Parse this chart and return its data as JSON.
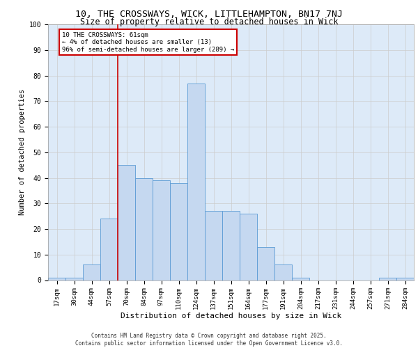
{
  "title1": "10, THE CROSSWAYS, WICK, LITTLEHAMPTON, BN17 7NJ",
  "title2": "Size of property relative to detached houses in Wick",
  "xlabel": "Distribution of detached houses by size in Wick",
  "ylabel": "Number of detached properties",
  "categories": [
    "17sqm",
    "30sqm",
    "44sqm",
    "57sqm",
    "70sqm",
    "84sqm",
    "97sqm",
    "110sqm",
    "124sqm",
    "137sqm",
    "151sqm",
    "164sqm",
    "177sqm",
    "191sqm",
    "204sqm",
    "217sqm",
    "231sqm",
    "244sqm",
    "257sqm",
    "271sqm",
    "284sqm"
  ],
  "values": [
    1,
    1,
    6,
    24,
    45,
    40,
    39,
    38,
    77,
    27,
    27,
    26,
    13,
    6,
    1,
    0,
    0,
    0,
    0,
    1,
    1
  ],
  "bar_color": "#c5d8f0",
  "bar_edge_color": "#5b9bd5",
  "grid_color": "#cccccc",
  "background_color": "#ddeaf8",
  "vline_color": "#cc0000",
  "vline_x": 3.5,
  "annotation_text": "10 THE CROSSWAYS: 61sqm\n← 4% of detached houses are smaller (13)\n96% of semi-detached houses are larger (289) →",
  "annotation_box_color": "#cc0000",
  "footer_text": "Contains HM Land Registry data © Crown copyright and database right 2025.\nContains public sector information licensed under the Open Government Licence v3.0.",
  "ylim": [
    0,
    100
  ],
  "title1_fontsize": 9.5,
  "title2_fontsize": 8.5,
  "xlabel_fontsize": 8,
  "ylabel_fontsize": 7.5,
  "tick_fontsize": 6.5,
  "annotation_fontsize": 6.5,
  "footer_fontsize": 5.5
}
